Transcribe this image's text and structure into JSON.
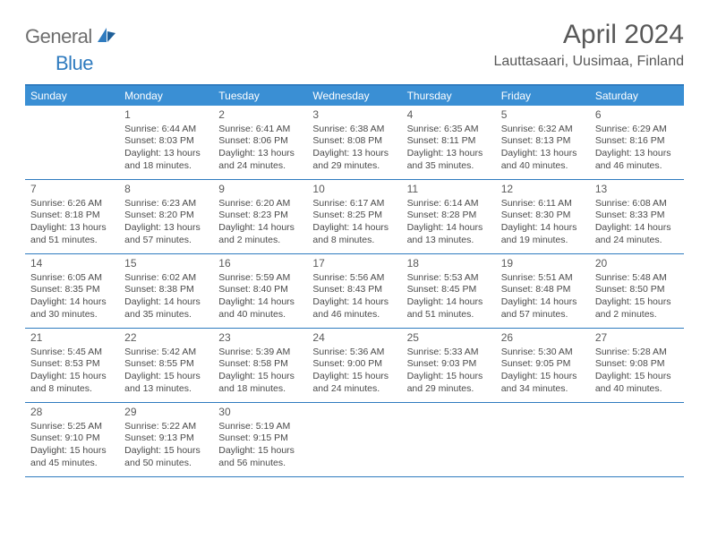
{
  "brand": {
    "part1": "General",
    "part2": "Blue"
  },
  "title": "April 2024",
  "location": "Lauttasaari, Uusimaa, Finland",
  "colors": {
    "header_bg": "#3a8fd4",
    "border": "#2f7bbf",
    "text": "#4a4a4a",
    "title_color": "#585858",
    "logo_gray": "#6e6e6e",
    "logo_blue": "#2f7bbf",
    "bg": "#ffffff"
  },
  "dow": [
    "Sunday",
    "Monday",
    "Tuesday",
    "Wednesday",
    "Thursday",
    "Friday",
    "Saturday"
  ],
  "weeks": [
    [
      null,
      {
        "n": "1",
        "sr": "Sunrise: 6:44 AM",
        "ss": "Sunset: 8:03 PM",
        "dl1": "Daylight: 13 hours",
        "dl2": "and 18 minutes."
      },
      {
        "n": "2",
        "sr": "Sunrise: 6:41 AM",
        "ss": "Sunset: 8:06 PM",
        "dl1": "Daylight: 13 hours",
        "dl2": "and 24 minutes."
      },
      {
        "n": "3",
        "sr": "Sunrise: 6:38 AM",
        "ss": "Sunset: 8:08 PM",
        "dl1": "Daylight: 13 hours",
        "dl2": "and 29 minutes."
      },
      {
        "n": "4",
        "sr": "Sunrise: 6:35 AM",
        "ss": "Sunset: 8:11 PM",
        "dl1": "Daylight: 13 hours",
        "dl2": "and 35 minutes."
      },
      {
        "n": "5",
        "sr": "Sunrise: 6:32 AM",
        "ss": "Sunset: 8:13 PM",
        "dl1": "Daylight: 13 hours",
        "dl2": "and 40 minutes."
      },
      {
        "n": "6",
        "sr": "Sunrise: 6:29 AM",
        "ss": "Sunset: 8:16 PM",
        "dl1": "Daylight: 13 hours",
        "dl2": "and 46 minutes."
      }
    ],
    [
      {
        "n": "7",
        "sr": "Sunrise: 6:26 AM",
        "ss": "Sunset: 8:18 PM",
        "dl1": "Daylight: 13 hours",
        "dl2": "and 51 minutes."
      },
      {
        "n": "8",
        "sr": "Sunrise: 6:23 AM",
        "ss": "Sunset: 8:20 PM",
        "dl1": "Daylight: 13 hours",
        "dl2": "and 57 minutes."
      },
      {
        "n": "9",
        "sr": "Sunrise: 6:20 AM",
        "ss": "Sunset: 8:23 PM",
        "dl1": "Daylight: 14 hours",
        "dl2": "and 2 minutes."
      },
      {
        "n": "10",
        "sr": "Sunrise: 6:17 AM",
        "ss": "Sunset: 8:25 PM",
        "dl1": "Daylight: 14 hours",
        "dl2": "and 8 minutes."
      },
      {
        "n": "11",
        "sr": "Sunrise: 6:14 AM",
        "ss": "Sunset: 8:28 PM",
        "dl1": "Daylight: 14 hours",
        "dl2": "and 13 minutes."
      },
      {
        "n": "12",
        "sr": "Sunrise: 6:11 AM",
        "ss": "Sunset: 8:30 PM",
        "dl1": "Daylight: 14 hours",
        "dl2": "and 19 minutes."
      },
      {
        "n": "13",
        "sr": "Sunrise: 6:08 AM",
        "ss": "Sunset: 8:33 PM",
        "dl1": "Daylight: 14 hours",
        "dl2": "and 24 minutes."
      }
    ],
    [
      {
        "n": "14",
        "sr": "Sunrise: 6:05 AM",
        "ss": "Sunset: 8:35 PM",
        "dl1": "Daylight: 14 hours",
        "dl2": "and 30 minutes."
      },
      {
        "n": "15",
        "sr": "Sunrise: 6:02 AM",
        "ss": "Sunset: 8:38 PM",
        "dl1": "Daylight: 14 hours",
        "dl2": "and 35 minutes."
      },
      {
        "n": "16",
        "sr": "Sunrise: 5:59 AM",
        "ss": "Sunset: 8:40 PM",
        "dl1": "Daylight: 14 hours",
        "dl2": "and 40 minutes."
      },
      {
        "n": "17",
        "sr": "Sunrise: 5:56 AM",
        "ss": "Sunset: 8:43 PM",
        "dl1": "Daylight: 14 hours",
        "dl2": "and 46 minutes."
      },
      {
        "n": "18",
        "sr": "Sunrise: 5:53 AM",
        "ss": "Sunset: 8:45 PM",
        "dl1": "Daylight: 14 hours",
        "dl2": "and 51 minutes."
      },
      {
        "n": "19",
        "sr": "Sunrise: 5:51 AM",
        "ss": "Sunset: 8:48 PM",
        "dl1": "Daylight: 14 hours",
        "dl2": "and 57 minutes."
      },
      {
        "n": "20",
        "sr": "Sunrise: 5:48 AM",
        "ss": "Sunset: 8:50 PM",
        "dl1": "Daylight: 15 hours",
        "dl2": "and 2 minutes."
      }
    ],
    [
      {
        "n": "21",
        "sr": "Sunrise: 5:45 AM",
        "ss": "Sunset: 8:53 PM",
        "dl1": "Daylight: 15 hours",
        "dl2": "and 8 minutes."
      },
      {
        "n": "22",
        "sr": "Sunrise: 5:42 AM",
        "ss": "Sunset: 8:55 PM",
        "dl1": "Daylight: 15 hours",
        "dl2": "and 13 minutes."
      },
      {
        "n": "23",
        "sr": "Sunrise: 5:39 AM",
        "ss": "Sunset: 8:58 PM",
        "dl1": "Daylight: 15 hours",
        "dl2": "and 18 minutes."
      },
      {
        "n": "24",
        "sr": "Sunrise: 5:36 AM",
        "ss": "Sunset: 9:00 PM",
        "dl1": "Daylight: 15 hours",
        "dl2": "and 24 minutes."
      },
      {
        "n": "25",
        "sr": "Sunrise: 5:33 AM",
        "ss": "Sunset: 9:03 PM",
        "dl1": "Daylight: 15 hours",
        "dl2": "and 29 minutes."
      },
      {
        "n": "26",
        "sr": "Sunrise: 5:30 AM",
        "ss": "Sunset: 9:05 PM",
        "dl1": "Daylight: 15 hours",
        "dl2": "and 34 minutes."
      },
      {
        "n": "27",
        "sr": "Sunrise: 5:28 AM",
        "ss": "Sunset: 9:08 PM",
        "dl1": "Daylight: 15 hours",
        "dl2": "and 40 minutes."
      }
    ],
    [
      {
        "n": "28",
        "sr": "Sunrise: 5:25 AM",
        "ss": "Sunset: 9:10 PM",
        "dl1": "Daylight: 15 hours",
        "dl2": "and 45 minutes."
      },
      {
        "n": "29",
        "sr": "Sunrise: 5:22 AM",
        "ss": "Sunset: 9:13 PM",
        "dl1": "Daylight: 15 hours",
        "dl2": "and 50 minutes."
      },
      {
        "n": "30",
        "sr": "Sunrise: 5:19 AM",
        "ss": "Sunset: 9:15 PM",
        "dl1": "Daylight: 15 hours",
        "dl2": "and 56 minutes."
      },
      null,
      null,
      null,
      null
    ]
  ]
}
